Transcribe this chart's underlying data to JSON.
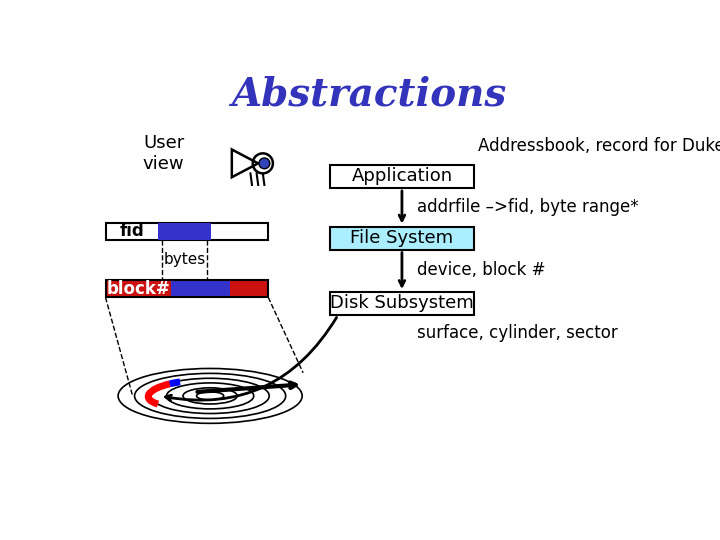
{
  "title": "Abstractions",
  "title_color": "#3333bb",
  "title_fontsize": 28,
  "bg_color": "#ffffff",
  "user_view_text": "User\nview",
  "addressbook_text": "Addressbook, record for Duke CPS",
  "application_text": "Application",
  "addrfile_text": "addrfile –>fid, byte range*",
  "filesystem_text": "File System",
  "device_text": "device, block #",
  "disksubsystem_text": "Disk Subsystem",
  "surface_text": "surface, cylinder, sector",
  "fid_text": "fid",
  "bytes_text": "bytes",
  "blocknum_text": "block#",
  "box_facecolor_app": "#ffffff",
  "box_facecolor_fs": "#aaeeff",
  "box_facecolor_disk": "#ffffff",
  "box_edgecolor": "#000000",
  "bar_white": "#ffffff",
  "bar_blue": "#3333cc",
  "bar_red": "#cc1111",
  "arrow_color": "#000000",
  "dashed_color": "#000000",
  "text_color": "#000000",
  "font_size_label": 12,
  "font_size_box": 13
}
